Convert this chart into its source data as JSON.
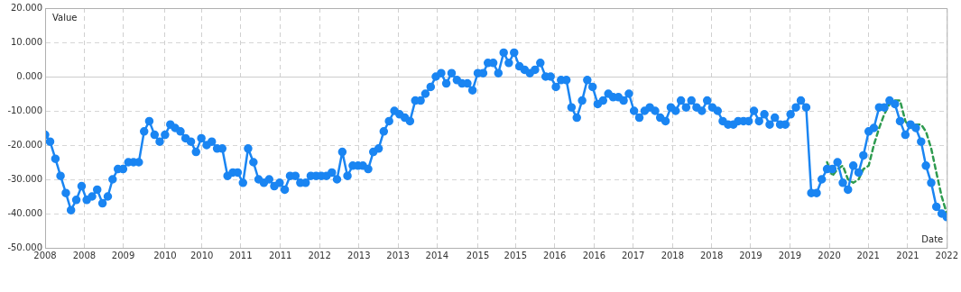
{
  "chart_data": {
    "type": "line",
    "xlabel": "Date",
    "ylabel": "Value",
    "xlim": [
      "2008-02",
      "2022-07"
    ],
    "ylim": [
      -50,
      20
    ],
    "xticks": [
      {
        "value": "2008-02-01",
        "label": "2008"
      },
      {
        "value": "2008-09-17",
        "label": "2008"
      },
      {
        "value": "2009-05-02",
        "label": "2009"
      },
      {
        "value": "2010-01-01",
        "label": "2010"
      },
      {
        "value": "2010-08-04",
        "label": "2010"
      },
      {
        "value": "2011-03-19",
        "label": "2011"
      },
      {
        "value": "2011-11-05",
        "label": "2011"
      },
      {
        "value": "2012-06-21",
        "label": "2012"
      },
      {
        "value": "2013-02-06",
        "label": "2013"
      },
      {
        "value": "2013-09-22",
        "label": "2013"
      },
      {
        "value": "2014-05-08",
        "label": "2014"
      },
      {
        "value": "2015-01-01",
        "label": "2015"
      },
      {
        "value": "2015-08-09",
        "label": "2015"
      },
      {
        "value": "2016-03-25",
        "label": "2016"
      },
      {
        "value": "2016-11-10",
        "label": "2016"
      },
      {
        "value": "2017-06-26",
        "label": "2017"
      },
      {
        "value": "2018-02-11",
        "label": "2018"
      },
      {
        "value": "2018-09-27",
        "label": "2018"
      },
      {
        "value": "2019-05-13",
        "label": "2019"
      },
      {
        "value": "2019-12-28",
        "label": "2019"
      },
      {
        "value": "2020-08-14",
        "label": "2020"
      },
      {
        "value": "2021-03-29",
        "label": "2021"
      },
      {
        "value": "2021-11-15",
        "label": "2021"
      },
      {
        "value": "2022-07-01",
        "label": "2022"
      }
    ],
    "yticks": [
      {
        "value": 20,
        "label": "20.000"
      },
      {
        "value": 10,
        "label": "10.000"
      },
      {
        "value": 0,
        "label": "0.000"
      },
      {
        "value": -10,
        "label": "-10.000"
      },
      {
        "value": -20,
        "label": "-20.000"
      },
      {
        "value": -30,
        "label": "-30.000"
      },
      {
        "value": -40,
        "label": "-40.000"
      },
      {
        "value": -50,
        "label": "-50.000"
      }
    ],
    "grid": true,
    "legend": false,
    "series": [
      {
        "color": "#1a85f2",
        "marker": "circle",
        "line_style": "solid",
        "x": [
          "2008-02",
          "2008-03",
          "2008-04",
          "2008-05",
          "2008-06",
          "2008-07",
          "2008-08",
          "2008-09",
          "2008-10",
          "2008-11",
          "2008-12",
          "2009-01",
          "2009-02",
          "2009-03",
          "2009-04",
          "2009-05",
          "2009-06",
          "2009-07",
          "2009-08",
          "2009-09",
          "2009-10",
          "2009-11",
          "2009-12",
          "2010-01",
          "2010-02",
          "2010-03",
          "2010-04",
          "2010-05",
          "2010-06",
          "2010-07",
          "2010-08",
          "2010-09",
          "2010-10",
          "2010-11",
          "2010-12",
          "2011-01",
          "2011-02",
          "2011-03",
          "2011-04",
          "2011-05",
          "2011-06",
          "2011-07",
          "2011-08",
          "2011-09",
          "2011-10",
          "2011-11",
          "2011-12",
          "2012-01",
          "2012-02",
          "2012-03",
          "2012-04",
          "2012-05",
          "2012-06",
          "2012-07",
          "2012-08",
          "2012-09",
          "2012-10",
          "2012-11",
          "2012-12",
          "2013-01",
          "2013-02",
          "2013-03",
          "2013-04",
          "2013-05",
          "2013-06",
          "2013-07",
          "2013-08",
          "2013-09",
          "2013-10",
          "2013-11",
          "2013-12",
          "2014-01",
          "2014-02",
          "2014-03",
          "2014-04",
          "2014-05",
          "2014-06",
          "2014-07",
          "2014-08",
          "2014-09",
          "2014-10",
          "2014-11",
          "2014-12",
          "2015-01",
          "2015-02",
          "2015-03",
          "2015-04",
          "2015-05",
          "2015-06",
          "2015-07",
          "2015-08",
          "2015-09",
          "2015-10",
          "2015-11",
          "2015-12",
          "2016-01",
          "2016-02",
          "2016-03",
          "2016-04",
          "2016-05",
          "2016-06",
          "2016-07",
          "2016-08",
          "2016-09",
          "2016-10",
          "2016-11",
          "2016-12",
          "2017-01",
          "2017-02",
          "2017-03",
          "2017-04",
          "2017-05",
          "2017-06",
          "2017-07",
          "2017-08",
          "2017-09",
          "2017-10",
          "2017-11",
          "2017-12",
          "2018-01",
          "2018-02",
          "2018-03",
          "2018-04",
          "2018-05",
          "2018-06",
          "2018-07",
          "2018-08",
          "2018-09",
          "2018-10",
          "2018-11",
          "2018-12",
          "2019-01",
          "2019-02",
          "2019-03",
          "2019-04",
          "2019-05",
          "2019-06",
          "2019-07",
          "2019-08",
          "2019-09",
          "2019-10",
          "2019-11",
          "2019-12",
          "2020-01",
          "2020-02",
          "2020-03",
          "2020-04",
          "2020-05",
          "2020-06",
          "2020-07",
          "2020-08",
          "2020-09",
          "2020-10",
          "2020-11",
          "2020-12",
          "2021-01",
          "2021-02",
          "2021-03",
          "2021-04",
          "2021-05",
          "2021-06",
          "2021-07",
          "2021-08",
          "2021-09",
          "2021-10",
          "2021-11",
          "2021-12",
          "2022-01",
          "2022-02",
          "2022-03",
          "2022-04",
          "2022-05",
          "2022-06",
          "2022-07"
        ],
        "values": [
          -17,
          -19,
          -24,
          -29,
          -34,
          -39,
          -36,
          -32,
          -36,
          -35,
          -33,
          -37,
          -35,
          -30,
          -27,
          -27,
          -25,
          -25,
          -25,
          -16,
          -13,
          -17,
          -19,
          -17,
          -14,
          -15,
          -16,
          -18,
          -19,
          -22,
          -18,
          -20,
          -19,
          -21,
          -21,
          -29,
          -28,
          -28,
          -31,
          -21,
          -25,
          -30,
          -31,
          -30,
          -32,
          -31,
          -33,
          -29,
          -29,
          -31,
          -31,
          -29,
          -29,
          -29,
          -29,
          -28,
          -30,
          -22,
          -29,
          -26,
          -26,
          -26,
          -27,
          -22,
          -21,
          -16,
          -13,
          -10,
          -11,
          -12,
          -13,
          -7,
          -7,
          -5,
          -3,
          0,
          1,
          -2,
          1,
          -1,
          -2,
          -2,
          -4,
          1,
          1,
          4,
          4,
          1,
          7,
          4,
          7,
          3,
          2,
          1,
          2,
          4,
          0,
          0,
          -3,
          -1,
          -1,
          -9,
          -12,
          -7,
          -1,
          -3,
          -8,
          -7,
          -5,
          -6,
          -6,
          -7,
          -5,
          -10,
          -12,
          -10,
          -9,
          -10,
          -12,
          -13,
          -9,
          -10,
          -7,
          -9,
          -7,
          -9,
          -10,
          -7,
          -9,
          -10,
          -13,
          -14,
          -14,
          -13,
          -13,
          -13,
          -10,
          -13,
          -11,
          -14,
          -12,
          -14,
          -14,
          -11,
          -9,
          -7,
          -9,
          -34,
          -34,
          -30,
          -27,
          -27,
          -25,
          -31,
          -33,
          -26,
          -28,
          -23,
          -16,
          -15,
          -9,
          -9,
          -7,
          -8,
          -13,
          -17,
          -14,
          -15,
          -19,
          -26,
          -31,
          -38,
          -40,
          -41
        ]
      },
      {
        "color": "#2e9b4f",
        "marker": "none",
        "line_style": "dashed",
        "x": [
          "2020-08",
          "2020-09",
          "2020-10",
          "2020-11",
          "2020-12",
          "2021-01",
          "2021-02",
          "2021-03",
          "2021-04",
          "2021-05",
          "2021-06",
          "2021-07",
          "2021-08",
          "2021-09",
          "2021-10",
          "2021-11",
          "2021-12",
          "2022-01",
          "2022-02",
          "2022-03",
          "2022-04",
          "2022-05",
          "2022-06",
          "2022-07"
        ],
        "values": [
          -25,
          -29,
          -27,
          -26,
          -30,
          -31,
          -30,
          -27,
          -26,
          -20,
          -15,
          -11,
          -8,
          -7,
          -7,
          -13,
          -15,
          -14,
          -14,
          -16,
          -21,
          -28,
          -35,
          -40
        ]
      }
    ]
  }
}
